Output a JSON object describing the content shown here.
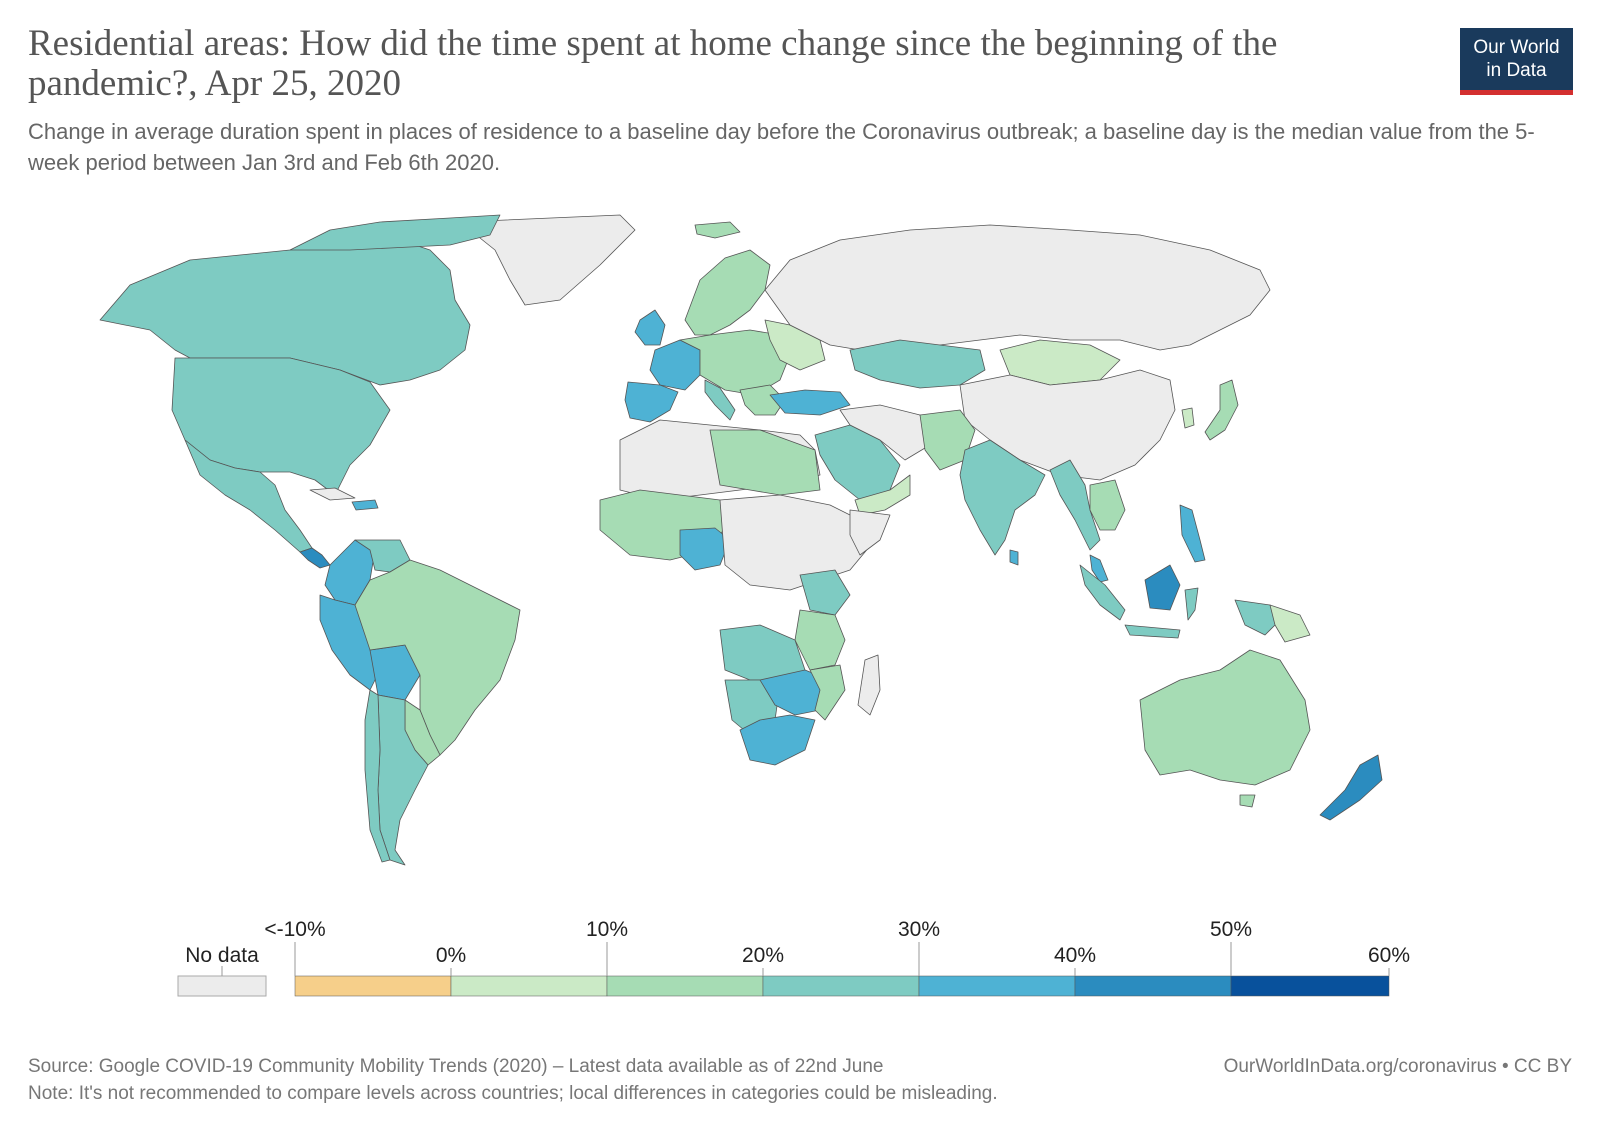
{
  "header": {
    "title": "Residential areas: How did the time spent at home change since the beginning of the pandemic?, Apr 25, 2020",
    "subtitle": "Change in average duration spent in places of residence to a baseline day before the Coronavirus outbreak; a baseline day is the median value from the 5-week period between Jan 3rd and Feb 6th 2020."
  },
  "logo": {
    "line1": "Our World",
    "line2": "in Data",
    "background": "#1a3a5c",
    "accent": "#d32f2f"
  },
  "legend": {
    "no_data_label": "No data",
    "no_data_color": "#ececec",
    "upper_ticks": [
      "<-10%",
      "10%",
      "30%",
      "50%"
    ],
    "lower_ticks": [
      "0%",
      "20%",
      "40%",
      "60%"
    ],
    "bins": [
      {
        "range": "<-10% to 0%",
        "color": "#f6cf8a"
      },
      {
        "range": "0% to 10%",
        "color": "#cbeac6"
      },
      {
        "range": "10% to 20%",
        "color": "#a6dcb4"
      },
      {
        "range": "20% to 30%",
        "color": "#7ecbc2"
      },
      {
        "range": "30% to 40%",
        "color": "#4eb2d4"
      },
      {
        "range": "40% to 50%",
        "color": "#2b8cbf"
      },
      {
        "range": "50% to 60%",
        "color": "#08519c"
      }
    ]
  },
  "map_colors": {
    "land_no_data": "#ececec",
    "border": "#555555"
  },
  "footer": {
    "source": "Source: Google COVID-19 Community Mobility Trends (2020) – Latest data available as of 22nd June",
    "link": "OurWorldInData.org/coronavirus • CC BY",
    "note": "Note: It's not recommended to compare levels across countries; local differences in categories could be misleading."
  }
}
